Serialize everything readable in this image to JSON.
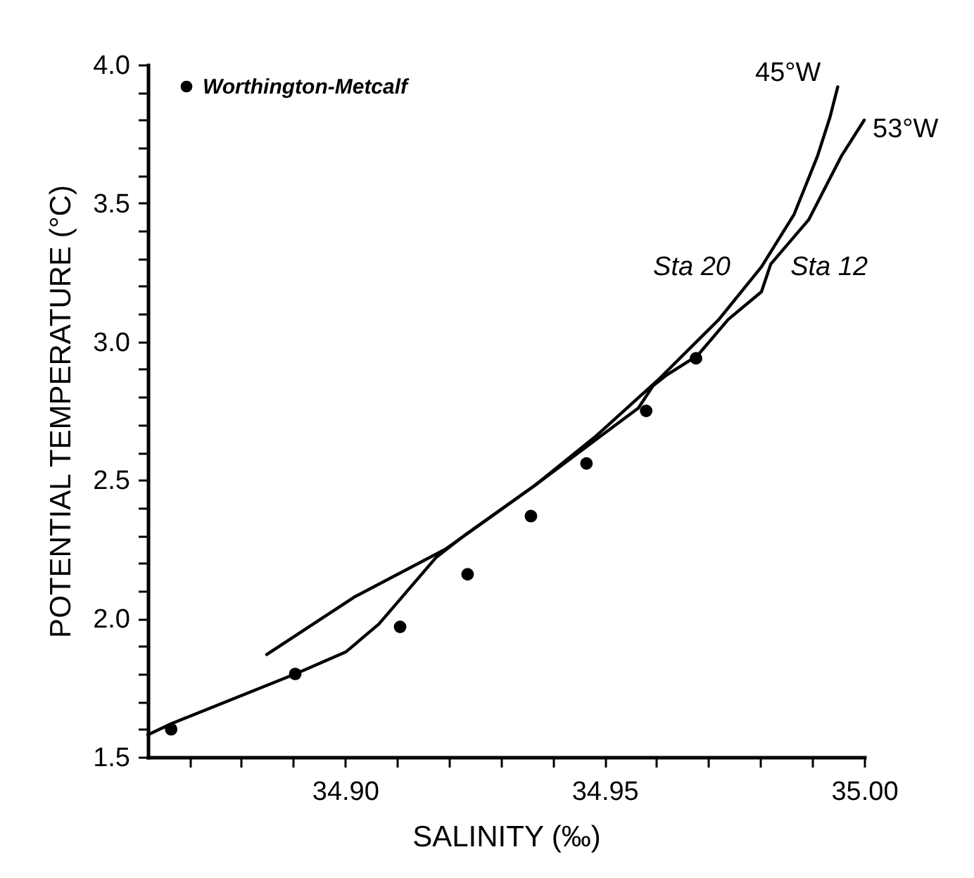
{
  "chart_data": {
    "type": "line",
    "xlabel": "SALINITY (‰)",
    "ylabel": "POTENTIAL TEMPERATURE (°C)",
    "xlim": [
      34.862,
      35.0
    ],
    "ylim": [
      1.5,
      4.0
    ],
    "xticks": [
      {
        "value": 34.87,
        "label": null
      },
      {
        "value": 34.88,
        "label": null
      },
      {
        "value": 34.89,
        "label": null
      },
      {
        "value": 34.9,
        "label": "34.90"
      },
      {
        "value": 34.91,
        "label": null
      },
      {
        "value": 34.92,
        "label": null
      },
      {
        "value": 34.93,
        "label": null
      },
      {
        "value": 34.94,
        "label": null
      },
      {
        "value": 34.95,
        "label": "34.95"
      },
      {
        "value": 34.96,
        "label": null
      },
      {
        "value": 34.97,
        "label": null
      },
      {
        "value": 34.98,
        "label": null
      },
      {
        "value": 34.99,
        "label": null
      },
      {
        "value": 35.0,
        "label": "35.00"
      }
    ],
    "yticks": [
      {
        "value": 1.5,
        "label": "1.5"
      },
      {
        "value": 1.6,
        "label": null
      },
      {
        "value": 1.7,
        "label": null
      },
      {
        "value": 1.8,
        "label": null
      },
      {
        "value": 1.9,
        "label": null
      },
      {
        "value": 2.0,
        "label": "2.0"
      },
      {
        "value": 2.1,
        "label": null
      },
      {
        "value": 2.2,
        "label": null
      },
      {
        "value": 2.3,
        "label": null
      },
      {
        "value": 2.4,
        "label": null
      },
      {
        "value": 2.5,
        "label": "2.5"
      },
      {
        "value": 2.6,
        "label": null
      },
      {
        "value": 2.7,
        "label": null
      },
      {
        "value": 2.8,
        "label": null
      },
      {
        "value": 2.9,
        "label": null
      },
      {
        "value": 3.0,
        "label": "3.0"
      },
      {
        "value": 3.1,
        "label": null
      },
      {
        "value": 3.2,
        "label": null
      },
      {
        "value": 3.3,
        "label": null
      },
      {
        "value": 3.4,
        "label": null
      },
      {
        "value": 3.5,
        "label": "3.5"
      },
      {
        "value": 3.6,
        "label": null
      },
      {
        "value": 3.7,
        "label": null
      },
      {
        "value": 3.8,
        "label": null
      },
      {
        "value": 3.9,
        "label": null
      },
      {
        "value": 4.0,
        "label": "4.0"
      }
    ],
    "grid": false,
    "legend": "top left",
    "line_style": "solid",
    "series": [
      {
        "name": "Worthington-Metcalf",
        "type": "scatter",
        "marker": "circle",
        "color": "#000000",
        "x": [
          34.8665,
          34.8904,
          34.9106,
          34.9236,
          34.9358,
          34.9465,
          34.958,
          34.9676
        ],
        "values": [
          1.6,
          1.8,
          1.97,
          2.16,
          2.37,
          2.56,
          2.75,
          2.94
        ]
      },
      {
        "name": "45°W",
        "type": "line",
        "color": "#000000",
        "x": [
          34.8849,
          34.902,
          34.9193,
          34.9365,
          34.9484,
          34.9602,
          34.972,
          34.9802,
          34.9865,
          34.991,
          34.9934,
          34.9949
        ],
        "values": [
          1.87,
          2.08,
          2.25,
          2.48,
          2.66,
          2.86,
          3.08,
          3.27,
          3.46,
          3.67,
          3.81,
          3.92
        ]
      },
      {
        "name": "53°W",
        "type": "line",
        "color": "#000000",
        "x": [
          34.862,
          34.8665,
          34.8904,
          34.9002,
          34.9065,
          34.912,
          34.9175,
          34.923,
          34.9365,
          34.9493,
          34.9565,
          34.9593,
          34.962,
          34.9679,
          34.9738,
          34.9802,
          34.982,
          34.9893,
          34.9956,
          35.0
        ],
        "values": [
          1.58,
          1.62,
          1.8,
          1.88,
          1.98,
          2.1,
          2.22,
          2.3,
          2.48,
          2.66,
          2.76,
          2.84,
          2.88,
          2.95,
          3.08,
          3.18,
          3.28,
          3.44,
          3.67,
          3.8
        ]
      }
    ],
    "annotations": [
      "Sta 20",
      "Sta 12"
    ]
  }
}
